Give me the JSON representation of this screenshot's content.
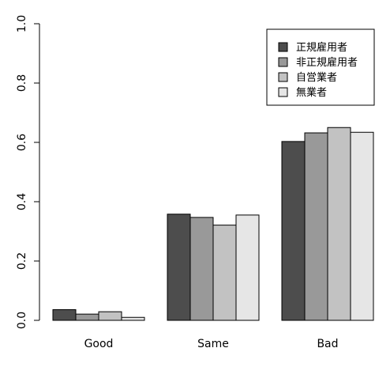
{
  "chart_data": {
    "type": "bar",
    "categories": [
      "Good",
      "Same",
      "Bad"
    ],
    "series": [
      {
        "name": "正規雇用者",
        "values": [
          0.036,
          0.358,
          0.603
        ],
        "color": "#4d4d4d"
      },
      {
        "name": "非正規雇用者",
        "values": [
          0.021,
          0.347,
          0.632
        ],
        "color": "#999999"
      },
      {
        "name": "自営業者",
        "values": [
          0.029,
          0.321,
          0.65
        ],
        "color": "#c2c2c2"
      },
      {
        "name": "無業者",
        "values": [
          0.01,
          0.355,
          0.634
        ],
        "color": "#e6e6e6"
      }
    ],
    "ylim": [
      0,
      1
    ],
    "yticks": [
      "0.0",
      "0.2",
      "0.4",
      "0.6",
      "0.8",
      "1.0"
    ],
    "legend_position": "top-right",
    "grid": false
  }
}
